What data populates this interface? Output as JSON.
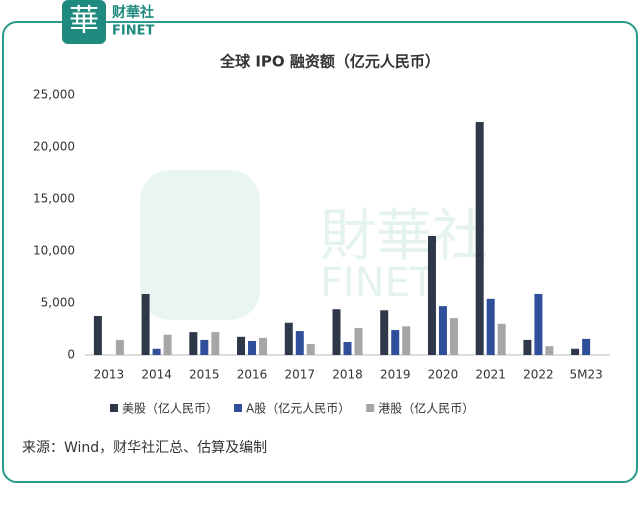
{
  "logo": {
    "mark": "華",
    "name": "财華社",
    "latin": "FINET"
  },
  "watermark": {
    "name": "財華社",
    "latin": "FINET"
  },
  "source": "来源：Wind，财华社汇总、估算及编制",
  "chart_data": {
    "type": "bar",
    "title": "全球 IPO 融资额（亿元人民币）",
    "categories": [
      "2013",
      "2014",
      "2015",
      "2016",
      "2017",
      "2018",
      "2019",
      "2020",
      "2021",
      "2022",
      "5M23"
    ],
    "series": [
      {
        "name": "美股（亿人民币）",
        "color": "#2e3848",
        "values": [
          3750,
          5870,
          2200,
          1750,
          3100,
          4400,
          4300,
          11450,
          22400,
          1450,
          600
        ]
      },
      {
        "name": "A股（亿元人民币）",
        "color": "#2f4f9a",
        "values": [
          null,
          600,
          1450,
          1350,
          2300,
          1250,
          2400,
          4700,
          5400,
          5870,
          1550
        ]
      },
      {
        "name": "港股（亿人民币）",
        "color": "#a6a6a6",
        "values": [
          1450,
          1950,
          2200,
          1650,
          1050,
          2600,
          2750,
          3550,
          3000,
          850,
          null
        ]
      }
    ],
    "ylim": [
      0,
      25000
    ],
    "yticks": [
      0,
      {
        "value": 5000,
        "label": "5,000"
      },
      {
        "value": 10000,
        "label": "10,000"
      },
      {
        "value": 15000,
        "label": "15,000"
      },
      {
        "value": 20000,
        "label": "20,000"
      },
      {
        "value": 25000,
        "label": "25,000"
      }
    ],
    "grid": false,
    "legend": "bottom"
  }
}
